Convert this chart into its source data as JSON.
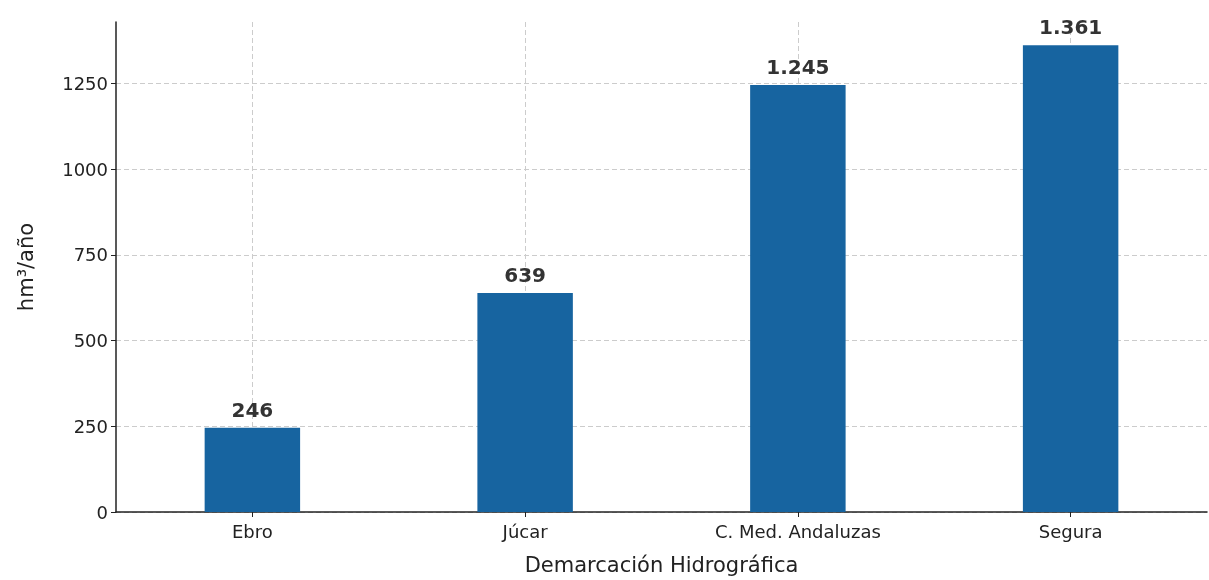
{
  "chart_data": {
    "type": "bar",
    "xlabel": "Demarcación Hidrográfica",
    "ylabel": "hm³/año",
    "categories": [
      "Ebro",
      "Júcar",
      "C. Med. Andaluzas",
      "Segura"
    ],
    "values": [
      246,
      639,
      1245,
      1361
    ],
    "value_labels": [
      "246",
      "639",
      "1.245",
      "1.361"
    ],
    "color": "#1764a0",
    "ylim": [
      0,
      1429
    ],
    "yticks": [
      0,
      250,
      500,
      750,
      1000,
      1250
    ],
    "grid": true
  }
}
